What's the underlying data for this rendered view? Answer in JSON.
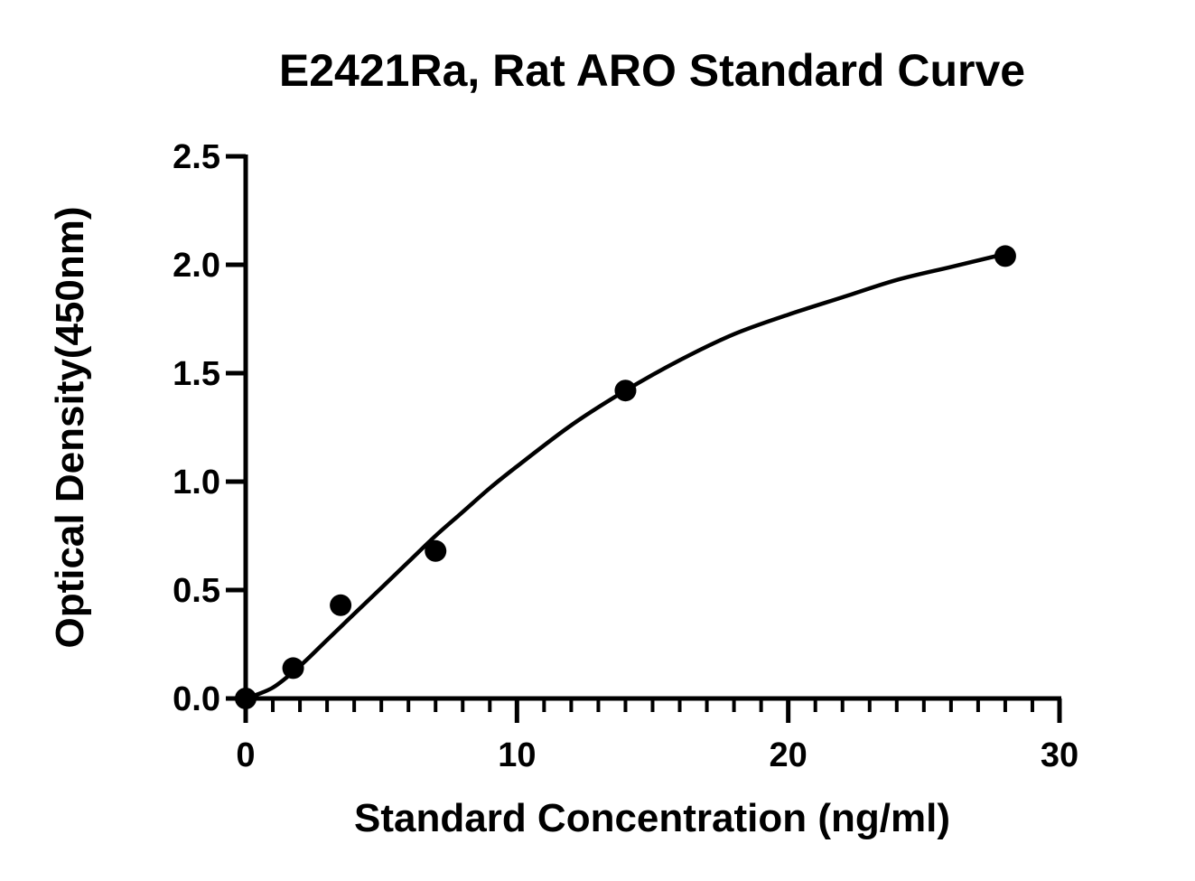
{
  "chart_data": {
    "type": "scatter",
    "title": "E2421Ra, Rat ARO Standard Curve",
    "xlabel": "Standard Concentration (ng/ml)",
    "ylabel": "Optical Density(450nm)",
    "xlim": [
      0,
      30
    ],
    "ylim": [
      0,
      2.5
    ],
    "x_ticks": [
      "0",
      "10",
      "20",
      "30"
    ],
    "y_ticks": [
      "0.0",
      "0.5",
      "1.0",
      "1.5",
      "2.0",
      "2.5"
    ],
    "grid": false,
    "legend": "none",
    "series": [
      {
        "points": [
          {
            "x": 0,
            "y": 0.0
          },
          {
            "x": 1.75,
            "y": 0.14
          },
          {
            "x": 3.5,
            "y": 0.43
          },
          {
            "x": 7,
            "y": 0.68
          },
          {
            "x": 14,
            "y": 1.42
          },
          {
            "x": 28,
            "y": 2.04
          }
        ]
      }
    ],
    "fit_curve": {
      "type": "four-parameter logistic",
      "points": [
        {
          "x": 0,
          "y": 0.0
        },
        {
          "x": 1,
          "y": 0.05
        },
        {
          "x": 2,
          "y": 0.15
        },
        {
          "x": 3,
          "y": 0.27
        },
        {
          "x": 4,
          "y": 0.39
        },
        {
          "x": 5,
          "y": 0.51
        },
        {
          "x": 6,
          "y": 0.63
        },
        {
          "x": 7,
          "y": 0.75
        },
        {
          "x": 8,
          "y": 0.86
        },
        {
          "x": 9,
          "y": 0.97
        },
        {
          "x": 10,
          "y": 1.07
        },
        {
          "x": 12,
          "y": 1.26
        },
        {
          "x": 14,
          "y": 1.42
        },
        {
          "x": 16,
          "y": 1.56
        },
        {
          "x": 18,
          "y": 1.68
        },
        {
          "x": 20,
          "y": 1.77
        },
        {
          "x": 22,
          "y": 1.85
        },
        {
          "x": 24,
          "y": 1.93
        },
        {
          "x": 26,
          "y": 1.99
        },
        {
          "x": 28,
          "y": 2.05
        }
      ]
    },
    "colors": {
      "marker": "#000000",
      "line": "#000000",
      "axis": "#000000",
      "background": "#ffffff"
    }
  }
}
